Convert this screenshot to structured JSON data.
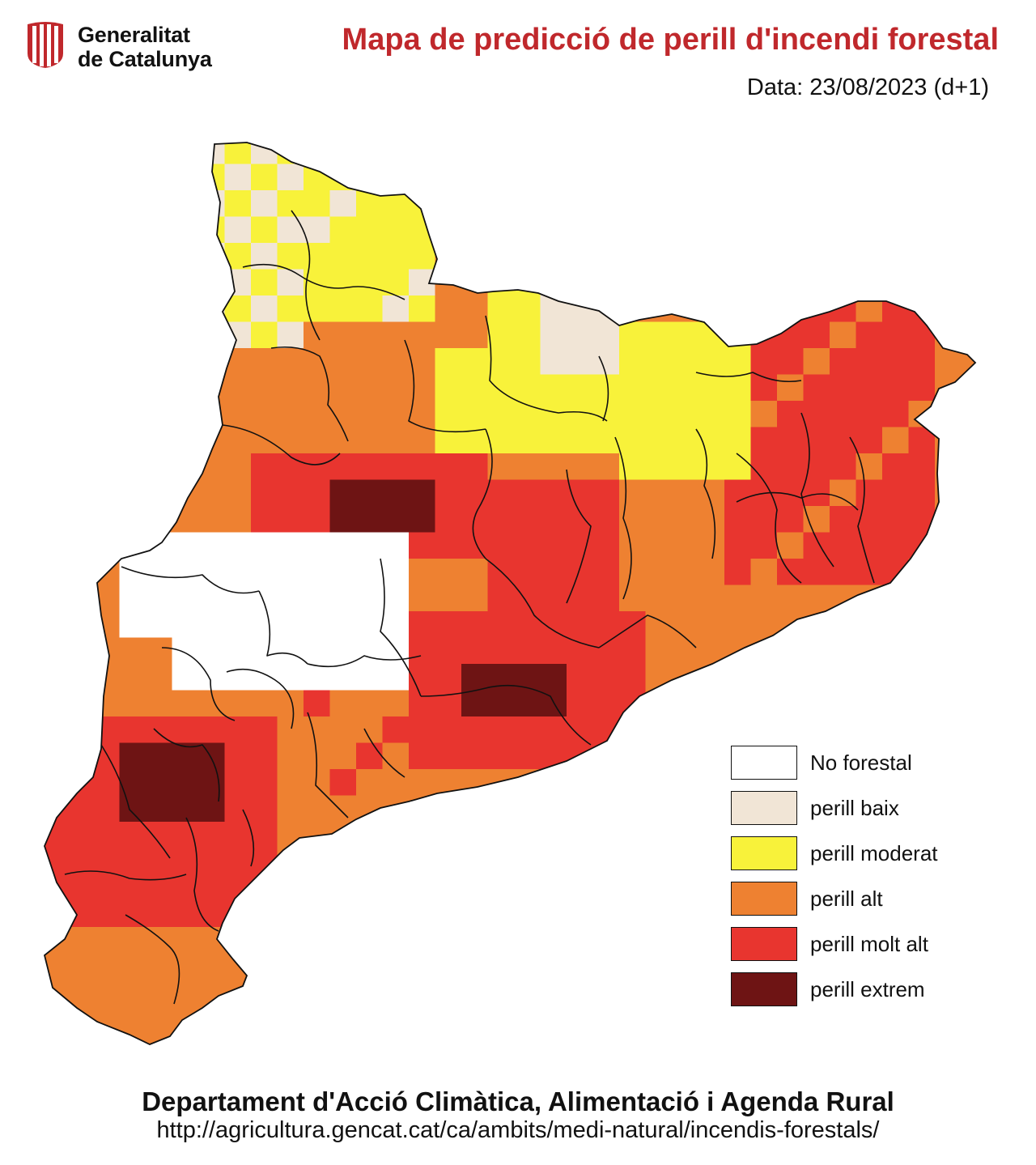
{
  "header": {
    "logo_line1": "Generalitat",
    "logo_line2": "de Catalunya",
    "title": "Mapa de predicció de perill d'incendi forestal",
    "date": "Data: 23/08/2023 (d+1)"
  },
  "legend": [
    {
      "key": "no-forestal",
      "label": "No forestal",
      "color": "#ffffff"
    },
    {
      "key": "baix",
      "label": "perill baix",
      "color": "#f1e5d6"
    },
    {
      "key": "moderat",
      "label": "perill moderat",
      "color": "#f8f23a"
    },
    {
      "key": "alt",
      "label": "perill alt",
      "color": "#ee8131"
    },
    {
      "key": "molt-alt",
      "label": "perill molt alt",
      "color": "#e8352f"
    },
    {
      "key": "extrem",
      "label": "perill extrem",
      "color": "#6e1414"
    }
  ],
  "footer": {
    "department": "Departament d'Acció Climàtica, Alimentació i Agenda Rural",
    "url": "http://agricultura.gencat.cat/ca/ambits/medi-natural/incendis-forestals/"
  },
  "colors": {
    "title": "#c0282c",
    "logo": "#c0282c",
    "border": "#111111"
  }
}
